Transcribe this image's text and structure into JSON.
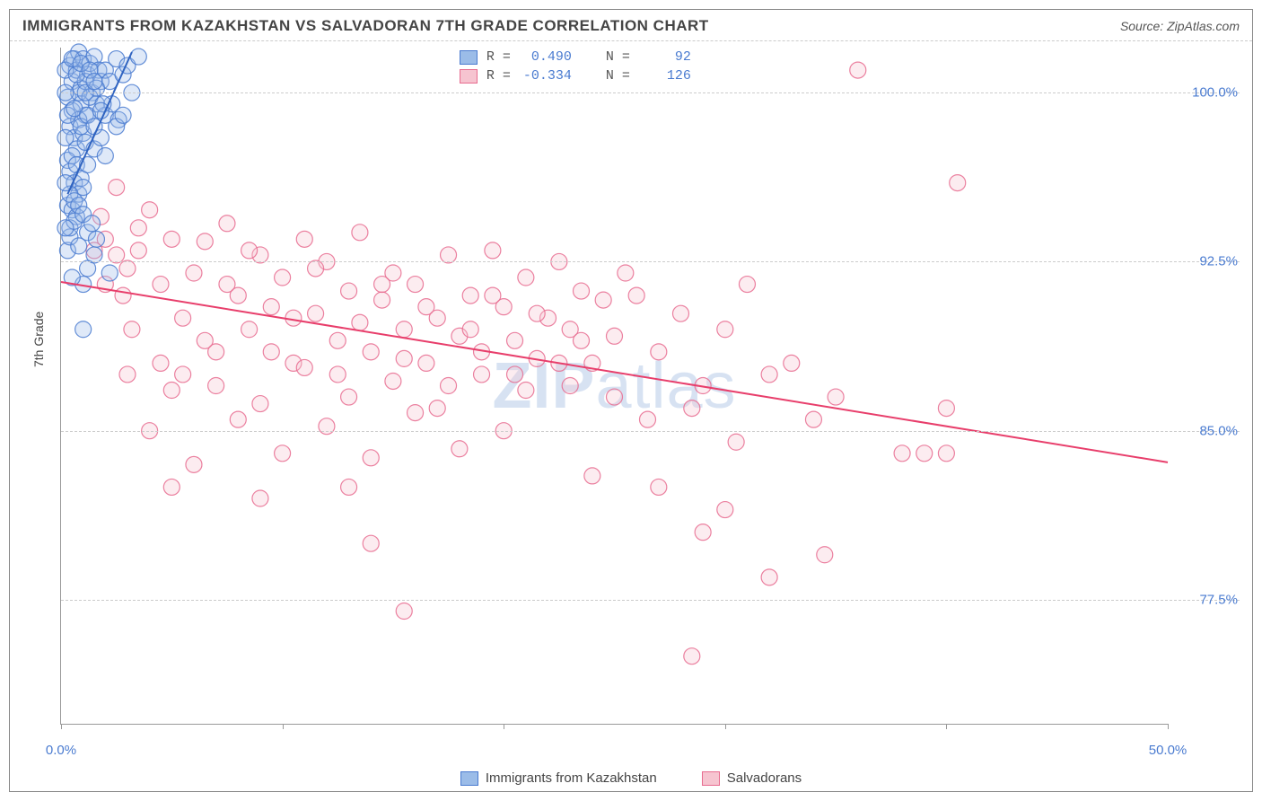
{
  "title": "IMMIGRANTS FROM KAZAKHSTAN VS SALVADORAN 7TH GRADE CORRELATION CHART",
  "source_label": "Source: ",
  "source_name": "ZipAtlas.com",
  "ylabel": "7th Grade",
  "watermark_a": "ZIP",
  "watermark_b": "atlas",
  "chart": {
    "type": "scatter",
    "xlim": [
      0,
      50
    ],
    "ylim": [
      72,
      102
    ],
    "xticks": [
      0,
      10,
      20,
      30,
      40,
      50
    ],
    "xtick_labels": {
      "0": "0.0%",
      "50": "50.0%"
    },
    "yticks": [
      77.5,
      85.0,
      92.5,
      100.0
    ],
    "ytick_labels": [
      "77.5%",
      "85.0%",
      "92.5%",
      "100.0%"
    ],
    "background_color": "#ffffff",
    "grid_color": "#cccccc",
    "axis_color": "#999999",
    "tick_label_color": "#4a7bd0",
    "marker_radius": 9,
    "marker_opacity": 0.32,
    "marker_stroke_opacity": 0.85,
    "line_width": 2,
    "series": [
      {
        "name": "Immigrants from Kazakhstan",
        "fill": "#9bbce8",
        "stroke": "#4a7bd0",
        "line_color": "#2f63c0",
        "R": "0.490",
        "N": "92",
        "trend": {
          "x1": 0.3,
          "y1": 95.5,
          "x2": 3.2,
          "y2": 101.8
        },
        "points": [
          [
            0.3,
            99.8
          ],
          [
            0.4,
            101.2
          ],
          [
            0.5,
            100.5
          ],
          [
            0.6,
            101.5
          ],
          [
            0.7,
            101.0
          ],
          [
            0.8,
            101.8
          ],
          [
            0.9,
            100.2
          ],
          [
            1.0,
            101.5
          ],
          [
            1.1,
            99.0
          ],
          [
            1.2,
            100.8
          ],
          [
            1.3,
            101.3
          ],
          [
            1.4,
            100.0
          ],
          [
            1.5,
            101.6
          ],
          [
            1.6,
            99.5
          ],
          [
            1.7,
            101.0
          ],
          [
            1.8,
            100.5
          ],
          [
            0.4,
            98.5
          ],
          [
            0.5,
            99.2
          ],
          [
            0.6,
            98.0
          ],
          [
            0.7,
            97.5
          ],
          [
            0.8,
            98.8
          ],
          [
            0.9,
            99.5
          ],
          [
            1.0,
            98.2
          ],
          [
            1.1,
            97.8
          ],
          [
            0.3,
            97.0
          ],
          [
            0.4,
            96.5
          ],
          [
            0.5,
            97.2
          ],
          [
            0.6,
            96.0
          ],
          [
            0.7,
            96.8
          ],
          [
            0.8,
            95.5
          ],
          [
            0.9,
            96.2
          ],
          [
            1.0,
            95.8
          ],
          [
            0.3,
            95.0
          ],
          [
            0.4,
            95.5
          ],
          [
            0.5,
            94.8
          ],
          [
            0.6,
            95.2
          ],
          [
            0.7,
            94.5
          ],
          [
            0.8,
            95.0
          ],
          [
            0.3,
            93.0
          ],
          [
            0.4,
            93.6
          ],
          [
            0.8,
            93.2
          ],
          [
            1.2,
            93.8
          ],
          [
            1.6,
            93.5
          ],
          [
            0.4,
            94.0
          ],
          [
            0.6,
            94.3
          ],
          [
            1.0,
            94.6
          ],
          [
            1.4,
            94.2
          ],
          [
            2.0,
            101.0
          ],
          [
            2.2,
            100.5
          ],
          [
            2.5,
            101.5
          ],
          [
            2.8,
            100.8
          ],
          [
            3.0,
            101.2
          ],
          [
            3.2,
            100.0
          ],
          [
            3.5,
            101.6
          ],
          [
            2.0,
            99.0
          ],
          [
            2.3,
            99.5
          ],
          [
            2.6,
            98.8
          ],
          [
            1.2,
            92.2
          ],
          [
            1.0,
            91.5
          ],
          [
            1.5,
            92.8
          ],
          [
            0.5,
            91.8
          ],
          [
            2.2,
            92.0
          ],
          [
            1.0,
            89.5
          ],
          [
            1.2,
            96.8
          ],
          [
            1.5,
            97.5
          ],
          [
            1.8,
            98.0
          ],
          [
            2.0,
            97.2
          ],
          [
            0.8,
            100.0
          ],
          [
            1.1,
            100.5
          ],
          [
            1.3,
            99.8
          ],
          [
            1.6,
            100.2
          ],
          [
            1.9,
            99.5
          ],
          [
            0.2,
            98.0
          ],
          [
            0.2,
            96.0
          ],
          [
            0.2,
            94.0
          ],
          [
            0.2,
            100.0
          ],
          [
            0.2,
            101.0
          ],
          [
            0.5,
            101.5
          ],
          [
            0.7,
            100.8
          ],
          [
            0.9,
            101.3
          ],
          [
            1.1,
            100.0
          ],
          [
            1.3,
            101.0
          ],
          [
            1.5,
            100.5
          ],
          [
            0.3,
            99.0
          ],
          [
            0.6,
            99.3
          ],
          [
            0.9,
            98.5
          ],
          [
            1.2,
            99.0
          ],
          [
            1.5,
            98.5
          ],
          [
            1.8,
            99.2
          ],
          [
            2.5,
            98.5
          ],
          [
            2.8,
            99.0
          ]
        ]
      },
      {
        "name": "Salvadorans",
        "fill": "#f6c4d0",
        "stroke": "#e86b8f",
        "line_color": "#e83e6b",
        "R": "-0.334",
        "N": "126",
        "trend": {
          "x1": 0,
          "y1": 91.6,
          "x2": 50,
          "y2": 83.6
        },
        "points": [
          [
            1.8,
            94.5
          ],
          [
            2.5,
            95.8
          ],
          [
            3.0,
            92.2
          ],
          [
            3.5,
            93.0
          ],
          [
            4.0,
            94.8
          ],
          [
            4.5,
            91.5
          ],
          [
            5.0,
            93.5
          ],
          [
            5.5,
            90.0
          ],
          [
            6.0,
            92.0
          ],
          [
            6.5,
            93.4
          ],
          [
            7.0,
            88.5
          ],
          [
            7.5,
            94.2
          ],
          [
            8.0,
            91.0
          ],
          [
            8.5,
            89.5
          ],
          [
            9.0,
            92.8
          ],
          [
            9.5,
            90.5
          ],
          [
            10.0,
            91.8
          ],
          [
            10.5,
            88.0
          ],
          [
            11.0,
            93.5
          ],
          [
            11.5,
            90.2
          ],
          [
            12.0,
            92.5
          ],
          [
            12.5,
            89.0
          ],
          [
            13.0,
            91.2
          ],
          [
            13.5,
            93.8
          ],
          [
            14.0,
            88.5
          ],
          [
            14.5,
            90.8
          ],
          [
            15.0,
            92.0
          ],
          [
            15.5,
            89.5
          ],
          [
            16.0,
            91.5
          ],
          [
            16.5,
            88.0
          ],
          [
            17.0,
            90.0
          ],
          [
            17.5,
            92.8
          ],
          [
            18.0,
            89.2
          ],
          [
            18.5,
            91.0
          ],
          [
            19.0,
            88.5
          ],
          [
            19.5,
            93.0
          ],
          [
            20.0,
            90.5
          ],
          [
            20.5,
            89.0
          ],
          [
            21.0,
            91.8
          ],
          [
            21.5,
            88.2
          ],
          [
            22.0,
            90.0
          ],
          [
            22.5,
            92.5
          ],
          [
            23.0,
            89.5
          ],
          [
            23.5,
            91.2
          ],
          [
            24.0,
            88.0
          ],
          [
            24.5,
            90.8
          ],
          [
            25.0,
            89.2
          ],
          [
            25.5,
            92.0
          ],
          [
            3.0,
            87.5
          ],
          [
            5.0,
            86.8
          ],
          [
            7.0,
            87.0
          ],
          [
            9.0,
            86.2
          ],
          [
            11.0,
            87.8
          ],
          [
            13.0,
            86.5
          ],
          [
            15.0,
            87.2
          ],
          [
            17.0,
            86.0
          ],
          [
            19.0,
            87.5
          ],
          [
            21.0,
            86.8
          ],
          [
            23.0,
            87.0
          ],
          [
            25.0,
            86.5
          ],
          [
            4.0,
            85.0
          ],
          [
            8.0,
            85.5
          ],
          [
            12.0,
            85.2
          ],
          [
            16.0,
            85.8
          ],
          [
            20.0,
            85.0
          ],
          [
            6.0,
            83.5
          ],
          [
            10.0,
            84.0
          ],
          [
            14.0,
            83.8
          ],
          [
            18.0,
            84.2
          ],
          [
            2.0,
            93.5
          ],
          [
            2.8,
            91.0
          ],
          [
            3.5,
            94.0
          ],
          [
            26.0,
            91.0
          ],
          [
            27.0,
            88.5
          ],
          [
            28.0,
            90.2
          ],
          [
            29.0,
            87.0
          ],
          [
            30.0,
            89.5
          ],
          [
            31.0,
            91.5
          ],
          [
            26.5,
            85.5
          ],
          [
            28.5,
            86.0
          ],
          [
            30.5,
            84.5
          ],
          [
            32.0,
            87.5
          ],
          [
            24.0,
            83.0
          ],
          [
            27.0,
            82.5
          ],
          [
            30.0,
            81.5
          ],
          [
            29.0,
            80.5
          ],
          [
            33.0,
            88.0
          ],
          [
            34.0,
            85.5
          ],
          [
            35.0,
            86.5
          ],
          [
            14.0,
            80.0
          ],
          [
            15.5,
            77.0
          ],
          [
            32.0,
            78.5
          ],
          [
            34.5,
            79.5
          ],
          [
            28.5,
            75.0
          ],
          [
            36.0,
            101.0
          ],
          [
            40.5,
            96.0
          ],
          [
            40.0,
            86.0
          ],
          [
            38.0,
            84.0
          ],
          [
            39.0,
            84.0
          ],
          [
            40.0,
            84.0
          ],
          [
            1.5,
            93.0
          ],
          [
            2.0,
            91.5
          ],
          [
            2.5,
            92.8
          ],
          [
            3.2,
            89.5
          ],
          [
            4.5,
            88.0
          ],
          [
            5.5,
            87.5
          ],
          [
            6.5,
            89.0
          ],
          [
            7.5,
            91.5
          ],
          [
            8.5,
            93.0
          ],
          [
            9.5,
            88.5
          ],
          [
            10.5,
            90.0
          ],
          [
            11.5,
            92.2
          ],
          [
            12.5,
            87.5
          ],
          [
            13.5,
            89.8
          ],
          [
            14.5,
            91.5
          ],
          [
            15.5,
            88.2
          ],
          [
            16.5,
            90.5
          ],
          [
            17.5,
            87.0
          ],
          [
            18.5,
            89.5
          ],
          [
            19.5,
            91.0
          ],
          [
            20.5,
            87.5
          ],
          [
            21.5,
            90.2
          ],
          [
            22.5,
            88.0
          ],
          [
            23.5,
            89.0
          ],
          [
            5.0,
            82.5
          ],
          [
            9.0,
            82.0
          ],
          [
            13.0,
            82.5
          ]
        ]
      }
    ]
  },
  "legend_bottom": [
    {
      "label": "Immigrants from Kazakhstan",
      "fill": "#9bbce8",
      "stroke": "#4a7bd0"
    },
    {
      "label": "Salvadorans",
      "fill": "#f6c4d0",
      "stroke": "#e86b8f"
    }
  ],
  "stat_r_label": "R =",
  "stat_n_label": "N ="
}
